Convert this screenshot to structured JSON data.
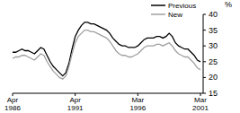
{
  "chart_data": {
    "type": "line",
    "y_label": "%",
    "categories": [
      "Apr 1986",
      null,
      null,
      null,
      null,
      null,
      null,
      null,
      null,
      null,
      null,
      null,
      null,
      null,
      null,
      null,
      null,
      null,
      null,
      null,
      "Apr 1991",
      null,
      null,
      null,
      null,
      null,
      null,
      null,
      null,
      null,
      null,
      null,
      null,
      null,
      null,
      null,
      null,
      null,
      null,
      null,
      "Mar 1996",
      null,
      null,
      null,
      null,
      null,
      null,
      null,
      null,
      null,
      null,
      null,
      null,
      null,
      null,
      null,
      null,
      null,
      null,
      null,
      "Mar 2001"
    ],
    "series": [
      {
        "name": "Previous",
        "color": "#000000",
        "values": [
          28,
          28,
          28.5,
          29,
          28.5,
          28.5,
          28,
          27.5,
          28.5,
          29.5,
          29,
          27,
          25,
          23.5,
          22.5,
          21.5,
          20.5,
          21.5,
          24.5,
          29,
          33,
          35,
          36.5,
          37.5,
          37.5,
          37,
          37,
          36.5,
          36,
          35.5,
          35,
          34,
          32.5,
          31.5,
          30.5,
          30,
          30,
          29.5,
          29.5,
          29.5,
          30,
          31,
          32,
          32.5,
          32.5,
          32.5,
          33,
          33,
          32.5,
          33,
          34,
          33,
          31,
          30,
          29.5,
          29,
          29,
          28,
          27,
          25.5,
          25
        ]
      },
      {
        "name": "New",
        "color": "#a0a0a0",
        "values": [
          26,
          26.5,
          26.5,
          27,
          27,
          26.5,
          26,
          25.5,
          26.5,
          27.5,
          27,
          25,
          23.5,
          22,
          21,
          20,
          19.5,
          20.5,
          23.5,
          27.5,
          31,
          33,
          34,
          35,
          35,
          34.5,
          34.5,
          34,
          33.5,
          33,
          32.5,
          31.5,
          30,
          28.5,
          27.5,
          27,
          27,
          26.5,
          26.5,
          27,
          27.5,
          28.5,
          29.5,
          30,
          30,
          30,
          30.5,
          30.5,
          30,
          30.5,
          31,
          30,
          28.5,
          27.5,
          27,
          26.5,
          26.5,
          25.5,
          24.5,
          23,
          22.5
        ]
      }
    ],
    "ylim": [
      15,
      40
    ],
    "yticks": [
      15,
      20,
      25,
      30,
      35,
      40
    ],
    "grid": false,
    "legend": "upper right"
  }
}
